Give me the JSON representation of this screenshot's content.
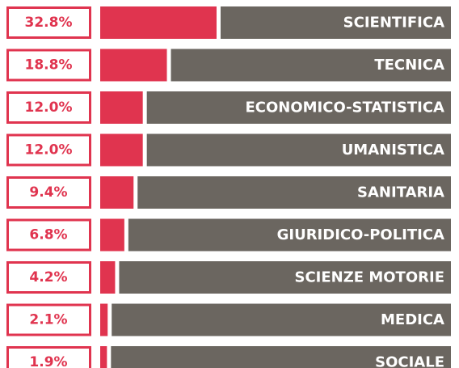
{
  "chart_data": {
    "type": "bar",
    "orientation": "horizontal",
    "color": "#e0344f",
    "categories": [
      "SCIENTIFICA",
      "TECNICA",
      "ECONOMICO-STATISTICA",
      "UMANISTICA",
      "SANITARIA",
      "GIURIDICO-POLITICA",
      "SCIENZE MOTORIE",
      "MEDICA",
      "SOCIALE"
    ],
    "values": [
      32.8,
      18.8,
      12.0,
      12.0,
      9.4,
      6.8,
      4.2,
      2.1,
      1.9
    ],
    "value_labels": [
      "32.8%",
      "18.8%",
      "12.0%",
      "12.0%",
      "9.4%",
      "6.8%",
      "4.2%",
      "2.1%",
      "1.9%"
    ]
  }
}
